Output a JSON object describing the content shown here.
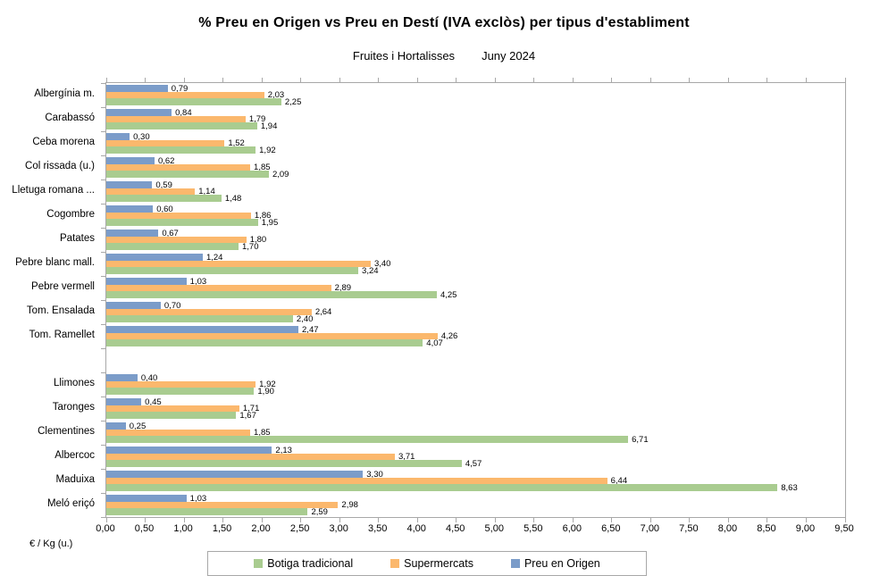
{
  "chart_data": {
    "type": "bar",
    "orientation": "horizontal",
    "title": "% Preu en Origen vs Preu en Destí (IVA exclòs) per tipus d'establiment",
    "subtitle_left": "Fruites i Hortalisses",
    "subtitle_right": "Juny 2024",
    "xlabel": "€ / Kg (u.)",
    "xlim": [
      0,
      9.5
    ],
    "x_tick_step": 0.5,
    "x_tick_labels": [
      "0,00",
      "0,50",
      "1,00",
      "1,50",
      "2,00",
      "2,50",
      "3,00",
      "3,50",
      "4,00",
      "4,50",
      "5,00",
      "5,50",
      "6,00",
      "6,50",
      "7,00",
      "7,50",
      "8,00",
      "8,50",
      "9,00",
      "9,50"
    ],
    "grid": false,
    "legend_position": "bottom",
    "axis_color": "#a8a8a8",
    "value_label_decimal_separator": ",",
    "categories": [
      "Albergínia m.",
      "Carabassó",
      "Ceba morena",
      "Col rissada (u.)",
      "Lletuga romana ...",
      "Cogombre",
      "Patates",
      "Pebre blanc mall.",
      "Pebre vermell",
      "Tom. Ensalada",
      "Tom. Ramellet",
      "Llimones",
      "Taronges",
      "Clementines",
      "Albercoc",
      "Maduixa",
      "Meló eriçó"
    ],
    "blank_row_after_index": 10,
    "series": [
      {
        "name": "Preu en Origen",
        "key": "preu-en-origen",
        "color": "#7b9cc9",
        "values": [
          0.79,
          0.84,
          0.3,
          0.62,
          0.59,
          0.6,
          0.67,
          1.24,
          1.03,
          0.7,
          2.47,
          0.4,
          0.45,
          0.25,
          2.13,
          3.3,
          1.03
        ]
      },
      {
        "name": "Supermercats",
        "key": "supermercats",
        "color": "#fbb86d",
        "values": [
          2.03,
          1.79,
          1.52,
          1.85,
          1.14,
          1.86,
          1.8,
          3.4,
          2.89,
          2.64,
          4.26,
          1.92,
          1.71,
          1.85,
          3.71,
          6.44,
          2.98
        ]
      },
      {
        "name": "Botiga tradicional",
        "key": "botiga-tradicional",
        "color": "#a9cc90",
        "values": [
          2.25,
          1.94,
          1.92,
          2.09,
          1.48,
          1.95,
          1.7,
          3.24,
          4.25,
          2.4,
          4.07,
          1.9,
          1.67,
          6.71,
          4.57,
          8.63,
          2.59
        ]
      }
    ],
    "legend": [
      {
        "label": "Botiga tradicional",
        "color": "#a9cc90"
      },
      {
        "label": "Supermercats",
        "color": "#fbb86d"
      },
      {
        "label": "Preu en Origen",
        "color": "#7b9cc9"
      }
    ]
  }
}
